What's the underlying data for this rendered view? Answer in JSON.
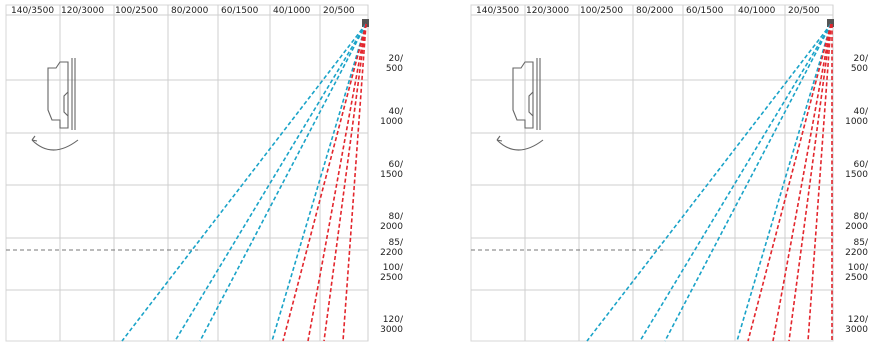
{
  "colors": {
    "cyan_beam": "#1aa3c8",
    "red_beam": "#e3262d",
    "grid": "#cfcfcf",
    "reference_line": "#777777"
  },
  "top_axis_labels": [
    "140/3500",
    "120/3000",
    "100/2500",
    "80/2000",
    "60/1500",
    "40/1000",
    "20/500"
  ],
  "right_axis_labels": [
    {
      "top": "20/",
      "bottom": "500"
    },
    {
      "top": "40/",
      "bottom": "1000"
    },
    {
      "top": "60/",
      "bottom": "1500"
    },
    {
      "top": "80/",
      "bottom": "2000"
    },
    {
      "top": "85/",
      "bottom": "2200"
    },
    {
      "top": "100/",
      "bottom": "2500"
    },
    {
      "top": "120/",
      "bottom": "3000"
    }
  ],
  "panels": [
    {
      "name": "left-panel",
      "device_icon": "sensor-mount-icon",
      "rotate_icon": "rotate-arrow-icon"
    },
    {
      "name": "right-panel",
      "device_icon": "sensor-mount-icon",
      "rotate_icon": "rotate-arrow-icon"
    }
  ]
}
